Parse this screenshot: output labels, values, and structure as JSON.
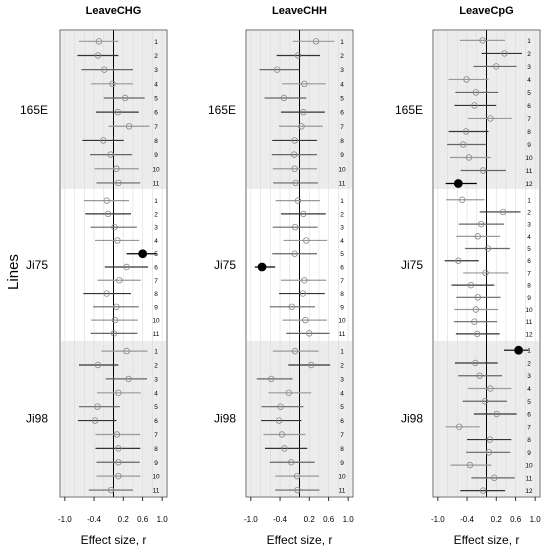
{
  "chart_data": {
    "type": "forest",
    "ylabel": "Lines",
    "groups": [
      "165E",
      "Ji75",
      "Ji98"
    ],
    "ylim_by_group": null,
    "xlim": [
      -1.1,
      1.1
    ],
    "xticks": [
      -1.0,
      -0.4,
      0.2,
      0.6,
      1.0
    ],
    "xtick_labels": [
      "-1.0",
      "-0.4",
      "0.2",
      "0.6",
      "1.0"
    ],
    "panels": [
      {
        "title": "LeaveCHG",
        "xlabel": "Effect size, r",
        "rows": [
          {
            "group": "165E",
            "labels": [
              "1",
              "2",
              "3",
              "4",
              "5",
              "6",
              "7",
              "8",
              "9",
              "10",
              "11"
            ],
            "est": [
              -0.3,
              -0.32,
              -0.19,
              -0.02,
              0.24,
              0.09,
              0.32,
              -0.21,
              -0.06,
              0.06,
              0.1
            ],
            "lo": [
              -0.71,
              -0.74,
              -0.66,
              -0.46,
              -0.2,
              -0.36,
              -0.1,
              -0.64,
              -0.48,
              -0.39,
              -0.35
            ],
            "hi": [
              0.1,
              0.1,
              0.4,
              0.4,
              0.64,
              0.52,
              0.74,
              0.21,
              0.38,
              0.52,
              0.55
            ],
            "sig": [
              false,
              false,
              false,
              false,
              false,
              false,
              false,
              false,
              false,
              false,
              false
            ]
          },
          {
            "group": "Ji75",
            "labels": [
              "1",
              "2",
              "3",
              "4",
              "5",
              "6",
              "7",
              "8",
              "9",
              "10",
              "11"
            ],
            "est": [
              -0.14,
              -0.11,
              0.02,
              0.08,
              0.6,
              0.27,
              0.12,
              -0.14,
              0.06,
              0.03,
              0.01
            ],
            "lo": [
              -0.61,
              -0.58,
              -0.47,
              -0.38,
              0.27,
              -0.18,
              -0.33,
              -0.62,
              -0.42,
              -0.46,
              -0.47
            ],
            "hi": [
              0.32,
              0.36,
              0.48,
              0.53,
              0.89,
              0.71,
              0.56,
              0.36,
              0.52,
              0.5,
              0.49
            ],
            "sig": [
              false,
              false,
              false,
              false,
              true,
              false,
              false,
              false,
              false,
              false,
              false
            ]
          },
          {
            "group": "Ji98",
            "labels": [
              "1",
              "2",
              "3",
              "4",
              "5",
              "6",
              "7",
              "8",
              "9",
              "10",
              "11"
            ],
            "est": [
              0.27,
              -0.32,
              0.31,
              0.1,
              -0.33,
              -0.38,
              0.07,
              0.1,
              0.1,
              0.1,
              -0.05
            ],
            "lo": [
              -0.25,
              -0.71,
              -0.16,
              -0.34,
              -0.71,
              -0.73,
              -0.37,
              -0.37,
              -0.35,
              -0.35,
              -0.51
            ],
            "hi": [
              0.7,
              0.1,
              0.69,
              0.56,
              0.13,
              0.06,
              0.55,
              0.55,
              0.54,
              0.55,
              0.4
            ],
            "sig": [
              false,
              false,
              false,
              false,
              false,
              false,
              false,
              false,
              false,
              false,
              false
            ]
          }
        ]
      },
      {
        "title": "LeaveCHH",
        "xlabel": "Effect size, r",
        "rows": [
          {
            "group": "165E",
            "labels": [
              "1",
              "2",
              "3",
              "4",
              "5",
              "6",
              "7",
              "8",
              "9",
              "10",
              "11"
            ],
            "est": [
              0.34,
              -0.03,
              -0.46,
              0.1,
              -0.32,
              0.08,
              0.04,
              -0.1,
              -0.11,
              -0.1,
              -0.08
            ],
            "lo": [
              -0.14,
              -0.47,
              -0.82,
              -0.36,
              -0.72,
              -0.38,
              -0.42,
              -0.56,
              -0.57,
              -0.55,
              -0.54
            ],
            "hi": [
              0.72,
              0.42,
              -0.01,
              0.54,
              0.14,
              0.52,
              0.48,
              0.36,
              0.36,
              0.36,
              0.38
            ],
            "sig": [
              false,
              false,
              false,
              false,
              false,
              false,
              false,
              false,
              false,
              false,
              false
            ]
          },
          {
            "group": "Ji75",
            "labels": [
              "1",
              "2",
              "3",
              "4",
              "5",
              "6",
              "7",
              "8",
              "9",
              "10",
              "11"
            ],
            "est": [
              -0.03,
              0.08,
              -0.09,
              0.14,
              -0.1,
              -0.77,
              0.1,
              0.07,
              -0.16,
              0.12,
              0.2
            ],
            "lo": [
              -0.49,
              -0.38,
              -0.55,
              -0.33,
              -0.56,
              -0.92,
              -0.38,
              -0.42,
              -0.61,
              -0.35,
              -0.27
            ],
            "hi": [
              0.42,
              0.54,
              0.37,
              0.57,
              0.36,
              -0.5,
              0.55,
              0.52,
              0.32,
              0.56,
              0.62
            ],
            "sig": [
              false,
              false,
              false,
              false,
              false,
              true,
              false,
              false,
              false,
              false,
              false
            ]
          },
          {
            "group": "Ji98",
            "labels": [
              "1",
              "2",
              "3",
              "4",
              "5",
              "6",
              "7",
              "8",
              "9",
              "10",
              "11"
            ],
            "est": [
              -0.09,
              0.24,
              -0.58,
              -0.22,
              -0.39,
              -0.42,
              -0.36,
              -0.31,
              -0.17,
              -0.05,
              -0.04
            ],
            "lo": [
              -0.55,
              -0.23,
              -0.88,
              -0.64,
              -0.78,
              -0.79,
              -0.74,
              -0.71,
              -0.61,
              -0.5,
              -0.5
            ],
            "hi": [
              0.39,
              0.63,
              -0.14,
              0.24,
              0.08,
              0.04,
              0.12,
              0.16,
              0.31,
              0.4,
              0.41
            ],
            "sig": [
              false,
              false,
              false,
              false,
              false,
              false,
              false,
              false,
              false,
              false,
              false
            ]
          }
        ]
      },
      {
        "title": "LeaveCpG",
        "xlabel": "Effect size, r",
        "rows": [
          {
            "group": "165E",
            "labels": [
              "1",
              "2",
              "3",
              "4",
              "5",
              "6",
              "7",
              "8",
              "9",
              "10",
              "11",
              "12"
            ],
            "est": [
              -0.08,
              0.37,
              0.2,
              -0.41,
              -0.22,
              -0.25,
              0.08,
              -0.42,
              -0.48,
              -0.36,
              -0.07,
              -0.58
            ],
            "lo": [
              -0.55,
              -0.1,
              -0.27,
              -0.78,
              -0.64,
              -0.66,
              -0.38,
              -0.78,
              -0.81,
              -0.75,
              -0.53,
              -0.84
            ],
            "hi": [
              0.38,
              0.73,
              0.62,
              0.04,
              0.24,
              0.2,
              0.52,
              0.04,
              -0.01,
              0.09,
              0.4,
              -0.2
            ],
            "sig": [
              false,
              false,
              false,
              false,
              false,
              false,
              false,
              false,
              false,
              false,
              false,
              true
            ]
          },
          {
            "group": "Ji75",
            "labels": [
              "1",
              "2",
              "3",
              "4",
              "5",
              "6",
              "7",
              "8",
              "9",
              "10",
              "11",
              "12"
            ],
            "est": [
              -0.5,
              0.34,
              -0.11,
              -0.18,
              0.03,
              -0.58,
              -0.02,
              -0.32,
              -0.18,
              -0.22,
              -0.25,
              -0.19
            ],
            "lo": [
              -0.83,
              -0.14,
              -0.57,
              -0.62,
              -0.44,
              -0.86,
              -0.48,
              -0.72,
              -0.62,
              -0.66,
              -0.67,
              -0.63
            ],
            "hi": [
              -0.04,
              0.7,
              0.36,
              0.28,
              0.48,
              -0.16,
              0.45,
              0.16,
              0.29,
              0.24,
              0.22,
              0.27
            ],
            "sig": [
              false,
              false,
              false,
              false,
              false,
              false,
              false,
              false,
              false,
              false,
              false,
              false
            ]
          },
          {
            "group": "Ji98",
            "labels": [
              "1",
              "2",
              "3",
              "4",
              "5",
              "6",
              "7",
              "8",
              "9",
              "10",
              "11",
              "12"
            ],
            "est": [
              0.66,
              -0.23,
              -0.14,
              0.08,
              -0.03,
              0.21,
              -0.56,
              0.07,
              0.05,
              -0.34,
              0.16,
              -0.07
            ],
            "lo": [
              0.36,
              -0.65,
              -0.58,
              -0.38,
              -0.49,
              -0.26,
              -0.84,
              -0.4,
              -0.42,
              -0.74,
              -0.31,
              -0.54
            ],
            "hi": [
              0.87,
              0.23,
              0.32,
              0.51,
              0.42,
              0.62,
              -0.14,
              0.51,
              0.49,
              0.1,
              0.58,
              0.38
            ],
            "sig": [
              true,
              false,
              false,
              false,
              false,
              false,
              false,
              false,
              false,
              false,
              false,
              false
            ]
          }
        ]
      }
    ]
  }
}
